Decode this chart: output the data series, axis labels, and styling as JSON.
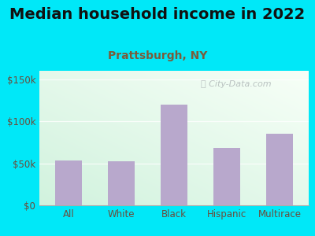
{
  "title": "Median household income in 2022",
  "subtitle": "Prattsburgh, NY",
  "categories": [
    "All",
    "White",
    "Black",
    "Hispanic",
    "Multirace"
  ],
  "values": [
    53000,
    52000,
    120000,
    68000,
    85000
  ],
  "bar_color": "#b8a8cc",
  "title_fontsize": 14,
  "title_color": "#111111",
  "subtitle_fontsize": 10,
  "subtitle_color": "#7a5c3a",
  "tick_label_color": "#6b4c3b",
  "background_outer": "#00e8f8",
  "ylim": [
    0,
    160000
  ],
  "yticks": [
    0,
    50000,
    100000,
    150000
  ],
  "ytick_labels": [
    "$0",
    "$50k",
    "$100k",
    "$150k"
  ],
  "watermark": "City-Data.com",
  "grid_color": "#c8e8d8"
}
